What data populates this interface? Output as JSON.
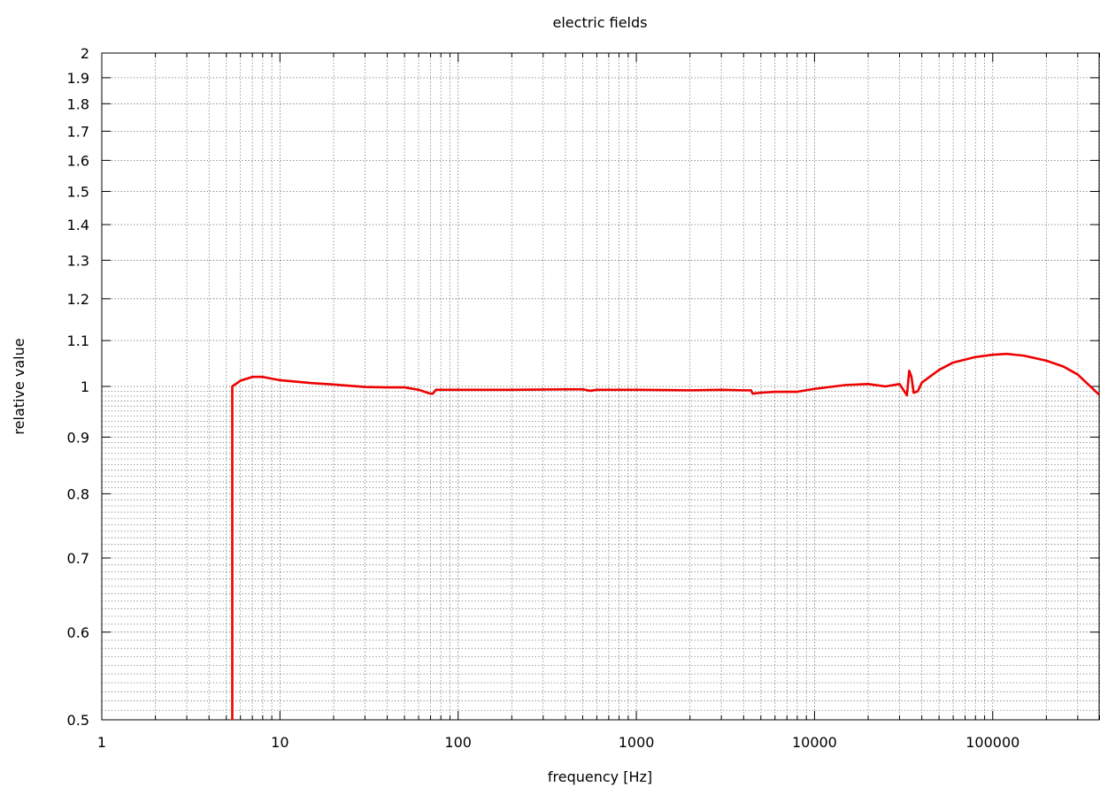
{
  "chart_data": {
    "type": "line",
    "title": "electric fields",
    "xlabel": "frequency [Hz]",
    "ylabel": "relative value",
    "x_scale": "log",
    "y_scale": "log",
    "xlim": [
      1,
      400000
    ],
    "ylim": [
      0.5,
      2
    ],
    "grid": true,
    "x_ticks": [
      {
        "value": 1,
        "label": "1"
      },
      {
        "value": 10,
        "label": "10"
      },
      {
        "value": 100,
        "label": "100"
      },
      {
        "value": 1000,
        "label": "1000"
      },
      {
        "value": 10000,
        "label": "10000"
      },
      {
        "value": 100000,
        "label": "100000"
      }
    ],
    "y_ticks": [
      {
        "value": 0.5,
        "label": "0.5"
      },
      {
        "value": 0.6,
        "label": "0.6"
      },
      {
        "value": 0.7,
        "label": "0.7"
      },
      {
        "value": 0.8,
        "label": "0.8"
      },
      {
        "value": 0.9,
        "label": "0.9"
      },
      {
        "value": 1.0,
        "label": "1"
      },
      {
        "value": 1.1,
        "label": "1.1"
      },
      {
        "value": 1.2,
        "label": "1.2"
      },
      {
        "value": 1.3,
        "label": "1.3"
      },
      {
        "value": 1.4,
        "label": "1.4"
      },
      {
        "value": 1.5,
        "label": "1.5"
      },
      {
        "value": 1.6,
        "label": "1.6"
      },
      {
        "value": 1.7,
        "label": "1.7"
      },
      {
        "value": 1.8,
        "label": "1.8"
      },
      {
        "value": 1.9,
        "label": "1.9"
      },
      {
        "value": 2.0,
        "label": "2"
      }
    ],
    "series": [
      {
        "color": "#ee0000",
        "x": [
          5.4,
          5.4,
          6,
          7,
          8,
          10,
          15,
          20,
          30,
          40,
          50,
          60,
          70,
          72,
          75,
          80,
          100,
          200,
          400,
          500,
          550,
          600,
          1000,
          2000,
          3000,
          4000,
          4400,
          4500,
          5000,
          6000,
          8000,
          10000,
          15000,
          20000,
          25000,
          30000,
          33000,
          34000,
          35000,
          36000,
          38000,
          40000,
          50000,
          60000,
          80000,
          100000,
          120000,
          150000,
          200000,
          250000,
          300000,
          400000
        ],
        "y": [
          0.5,
          1.0,
          1.012,
          1.02,
          1.02,
          1.013,
          1.007,
          1.004,
          0.999,
          0.998,
          0.998,
          0.993,
          0.985,
          0.985,
          0.993,
          0.993,
          0.993,
          0.993,
          0.994,
          0.994,
          0.991,
          0.993,
          0.993,
          0.992,
          0.993,
          0.992,
          0.992,
          0.985,
          0.987,
          0.989,
          0.989,
          0.995,
          1.003,
          1.005,
          1.0,
          1.005,
          0.982,
          1.033,
          1.02,
          0.987,
          0.99,
          1.008,
          1.035,
          1.051,
          1.063,
          1.068,
          1.07,
          1.066,
          1.055,
          1.042,
          1.025,
          0.983
        ]
      }
    ]
  }
}
